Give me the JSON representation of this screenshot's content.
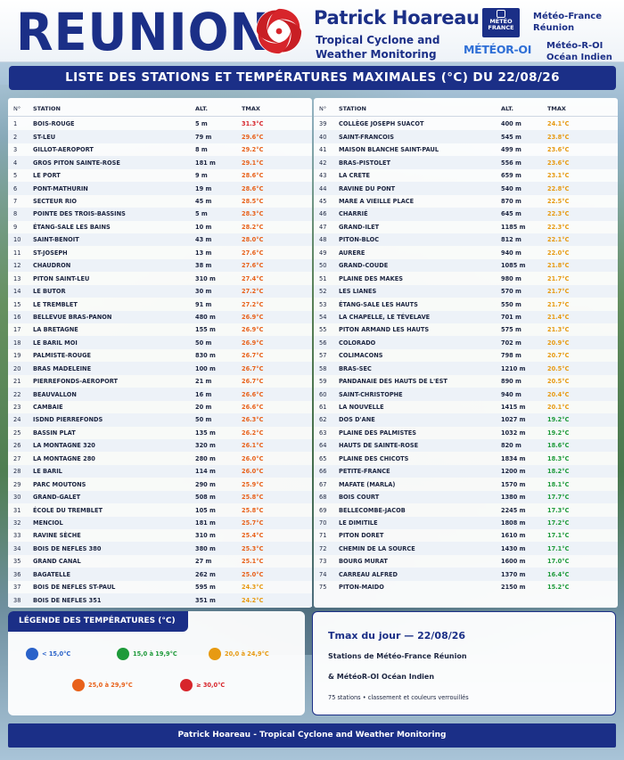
{
  "header": {
    "brand": "REUNION",
    "ph_title": "Patrick Hoareau",
    "ph_sub1": "Tropical Cyclone and",
    "ph_sub2": "Weather Monitoring",
    "mf_logo_line1": "MÉTÉO",
    "mf_logo_line2": "FRANCE",
    "mf_text1": "Météo-France",
    "mf_text2": "Réunion",
    "moi_logo": "MÉTÉOR-OI",
    "moi_text1": "Météo-R-OI",
    "moi_text2": "Océan Indien"
  },
  "title": "LISTE DES STATIONS ET TEMPÉRATURES MAXIMALES (°C) DU 22/08/26",
  "columns": {
    "n": "N°",
    "station": "STATION",
    "alt": "ALT.",
    "tmax": "TMAX"
  },
  "colors": {
    "lt15": "#2a62c9",
    "15to19": "#1e9a3a",
    "20to24": "#e79a12",
    "25to29": "#e8611a",
    "gte30": "#d7252b",
    "brand_blue": "#1b2f87"
  },
  "stations_left": [
    {
      "n": "1",
      "name": "BOIS-ROUGE",
      "alt": "5 m",
      "tmax": "31.3°C",
      "cls": "gte30"
    },
    {
      "n": "2",
      "name": "ST-LEU",
      "alt": "79 m",
      "tmax": "29.6°C",
      "cls": "25to29"
    },
    {
      "n": "3",
      "name": "GILLOT-AEROPORT",
      "alt": "8 m",
      "tmax": "29.2°C",
      "cls": "25to29"
    },
    {
      "n": "4",
      "name": "GROS PITON SAINTE-ROSE",
      "alt": "181 m",
      "tmax": "29.1°C",
      "cls": "25to29"
    },
    {
      "n": "5",
      "name": "LE PORT",
      "alt": "9 m",
      "tmax": "28.6°C",
      "cls": "25to29"
    },
    {
      "n": "6",
      "name": "PONT-MATHURIN",
      "alt": "19 m",
      "tmax": "28.6°C",
      "cls": "25to29"
    },
    {
      "n": "7",
      "name": "SECTEUR RIO",
      "alt": "45 m",
      "tmax": "28.5°C",
      "cls": "25to29"
    },
    {
      "n": "8",
      "name": "POINTE DES TROIS-BASSINS",
      "alt": "5 m",
      "tmax": "28.3°C",
      "cls": "25to29"
    },
    {
      "n": "9",
      "name": "ÉTANG-SALE LES BAINS",
      "alt": "10 m",
      "tmax": "28.2°C",
      "cls": "25to29"
    },
    {
      "n": "10",
      "name": "SAINT-BENOIT",
      "alt": "43 m",
      "tmax": "28.0°C",
      "cls": "25to29"
    },
    {
      "n": "11",
      "name": "ST-JOSEPH",
      "alt": "13 m",
      "tmax": "27.6°C",
      "cls": "25to29"
    },
    {
      "n": "12",
      "name": "CHAUDRON",
      "alt": "38 m",
      "tmax": "27.6°C",
      "cls": "25to29"
    },
    {
      "n": "13",
      "name": "PITON SAINT-LEU",
      "alt": "310 m",
      "tmax": "27.4°C",
      "cls": "25to29"
    },
    {
      "n": "14",
      "name": "LE BUTOR",
      "alt": "30 m",
      "tmax": "27.2°C",
      "cls": "25to29"
    },
    {
      "n": "15",
      "name": "LE TREMBLET",
      "alt": "91 m",
      "tmax": "27.2°C",
      "cls": "25to29"
    },
    {
      "n": "16",
      "name": "BELLEVUE BRAS-PANON",
      "alt": "480 m",
      "tmax": "26.9°C",
      "cls": "25to29"
    },
    {
      "n": "17",
      "name": "LA BRETAGNE",
      "alt": "155 m",
      "tmax": "26.9°C",
      "cls": "25to29"
    },
    {
      "n": "18",
      "name": "LE BARIL MOI",
      "alt": "50 m",
      "tmax": "26.9°C",
      "cls": "25to29"
    },
    {
      "n": "19",
      "name": "PALMISTE-ROUGE",
      "alt": "830 m",
      "tmax": "26.7°C",
      "cls": "25to29"
    },
    {
      "n": "20",
      "name": "BRAS MADELEINE",
      "alt": "100 m",
      "tmax": "26.7°C",
      "cls": "25to29"
    },
    {
      "n": "21",
      "name": "PIERREFONDS-AEROPORT",
      "alt": "21 m",
      "tmax": "26.7°C",
      "cls": "25to29"
    },
    {
      "n": "22",
      "name": "BEAUVALLON",
      "alt": "16 m",
      "tmax": "26.6°C",
      "cls": "25to29"
    },
    {
      "n": "23",
      "name": "CAMBAIE",
      "alt": "20 m",
      "tmax": "26.6°C",
      "cls": "25to29"
    },
    {
      "n": "24",
      "name": "ISDND PIERREFONDS",
      "alt": "50 m",
      "tmax": "26.3°C",
      "cls": "25to29"
    },
    {
      "n": "25",
      "name": "BASSIN PLAT",
      "alt": "135 m",
      "tmax": "26.2°C",
      "cls": "25to29"
    },
    {
      "n": "26",
      "name": "LA MONTAGNE 320",
      "alt": "320 m",
      "tmax": "26.1°C",
      "cls": "25to29"
    },
    {
      "n": "27",
      "name": "LA MONTAGNE 280",
      "alt": "280 m",
      "tmax": "26.0°C",
      "cls": "25to29"
    },
    {
      "n": "28",
      "name": "LE BARIL",
      "alt": "114 m",
      "tmax": "26.0°C",
      "cls": "25to29"
    },
    {
      "n": "29",
      "name": "PARC MOUTONS",
      "alt": "290 m",
      "tmax": "25.9°C",
      "cls": "25to29"
    },
    {
      "n": "30",
      "name": "GRAND-GALET",
      "alt": "508 m",
      "tmax": "25.8°C",
      "cls": "25to29"
    },
    {
      "n": "31",
      "name": "ÉCOLE DU TREMBLET",
      "alt": "105 m",
      "tmax": "25.8°C",
      "cls": "25to29"
    },
    {
      "n": "32",
      "name": "MENCIOL",
      "alt": "181 m",
      "tmax": "25.7°C",
      "cls": "25to29"
    },
    {
      "n": "33",
      "name": "RAVINE SÈCHE",
      "alt": "310 m",
      "tmax": "25.4°C",
      "cls": "25to29"
    },
    {
      "n": "34",
      "name": "BOIS DE NEFLES 380",
      "alt": "380 m",
      "tmax": "25.3°C",
      "cls": "25to29"
    },
    {
      "n": "35",
      "name": "GRAND CANAL",
      "alt": "27 m",
      "tmax": "25.1°C",
      "cls": "25to29"
    },
    {
      "n": "36",
      "name": "BAGATELLE",
      "alt": "262 m",
      "tmax": "25.0°C",
      "cls": "25to29"
    },
    {
      "n": "37",
      "name": "BOIS DE NEFLES ST-PAUL",
      "alt": "595 m",
      "tmax": "24.3°C",
      "cls": "20to24"
    },
    {
      "n": "38",
      "name": "BOIS DE NEFLES 351",
      "alt": "351 m",
      "tmax": "24.2°C",
      "cls": "20to24"
    }
  ],
  "stations_right": [
    {
      "n": "39",
      "name": "COLLÈGE JOSEPH SUACOT",
      "alt": "400 m",
      "tmax": "24.1°C",
      "cls": "20to24"
    },
    {
      "n": "40",
      "name": "SAINT-FRANCOIS",
      "alt": "545 m",
      "tmax": "23.8°C",
      "cls": "20to24"
    },
    {
      "n": "41",
      "name": "MAISON BLANCHE SAINT-PAUL",
      "alt": "499 m",
      "tmax": "23.6°C",
      "cls": "20to24"
    },
    {
      "n": "42",
      "name": "BRAS-PISTOLET",
      "alt": "556 m",
      "tmax": "23.6°C",
      "cls": "20to24"
    },
    {
      "n": "43",
      "name": "LA CRETE",
      "alt": "659 m",
      "tmax": "23.1°C",
      "cls": "20to24"
    },
    {
      "n": "44",
      "name": "RAVINE DU PONT",
      "alt": "540 m",
      "tmax": "22.8°C",
      "cls": "20to24"
    },
    {
      "n": "45",
      "name": "MARE A VIEILLE PLACE",
      "alt": "870 m",
      "tmax": "22.5°C",
      "cls": "20to24"
    },
    {
      "n": "46",
      "name": "CHARRIÉ",
      "alt": "645 m",
      "tmax": "22.3°C",
      "cls": "20to24"
    },
    {
      "n": "47",
      "name": "GRAND-ILET",
      "alt": "1185 m",
      "tmax": "22.3°C",
      "cls": "20to24"
    },
    {
      "n": "48",
      "name": "PITON-BLOC",
      "alt": "812 m",
      "tmax": "22.1°C",
      "cls": "20to24"
    },
    {
      "n": "49",
      "name": "AURERE",
      "alt": "940 m",
      "tmax": "22.0°C",
      "cls": "20to24"
    },
    {
      "n": "50",
      "name": "GRAND-COUDE",
      "alt": "1085 m",
      "tmax": "21.8°C",
      "cls": "20to24"
    },
    {
      "n": "51",
      "name": "PLAINE DES MAKES",
      "alt": "980 m",
      "tmax": "21.7°C",
      "cls": "20to24"
    },
    {
      "n": "52",
      "name": "LES LIANES",
      "alt": "570 m",
      "tmax": "21.7°C",
      "cls": "20to24"
    },
    {
      "n": "53",
      "name": "ÉTANG-SALE LES HAUTS",
      "alt": "550 m",
      "tmax": "21.7°C",
      "cls": "20to24"
    },
    {
      "n": "54",
      "name": "LA CHAPELLE, LE TÉVELAVE",
      "alt": "701 m",
      "tmax": "21.4°C",
      "cls": "20to24"
    },
    {
      "n": "55",
      "name": "PITON ARMAND LES HAUTS",
      "alt": "575 m",
      "tmax": "21.3°C",
      "cls": "20to24"
    },
    {
      "n": "56",
      "name": "COLORADO",
      "alt": "702 m",
      "tmax": "20.9°C",
      "cls": "20to24"
    },
    {
      "n": "57",
      "name": "COLIMACONS",
      "alt": "798 m",
      "tmax": "20.7°C",
      "cls": "20to24"
    },
    {
      "n": "58",
      "name": "BRAS-SEC",
      "alt": "1210 m",
      "tmax": "20.5°C",
      "cls": "20to24"
    },
    {
      "n": "59",
      "name": "PANDANAIE DES HAUTS DE L'EST",
      "alt": "890 m",
      "tmax": "20.5°C",
      "cls": "20to24"
    },
    {
      "n": "60",
      "name": "SAINT-CHRISTOPHE",
      "alt": "940 m",
      "tmax": "20.4°C",
      "cls": "20to24"
    },
    {
      "n": "61",
      "name": "LA NOUVELLE",
      "alt": "1415 m",
      "tmax": "20.1°C",
      "cls": "20to24"
    },
    {
      "n": "62",
      "name": "DOS D'ANE",
      "alt": "1027 m",
      "tmax": "19.2°C",
      "cls": "15to19"
    },
    {
      "n": "63",
      "name": "PLAINE DES PALMISTES",
      "alt": "1032 m",
      "tmax": "19.2°C",
      "cls": "15to19"
    },
    {
      "n": "64",
      "name": "HAUTS DE SAINTE-ROSE",
      "alt": "820 m",
      "tmax": "18.6°C",
      "cls": "15to19"
    },
    {
      "n": "65",
      "name": "PLAINE DES CHICOTS",
      "alt": "1834 m",
      "tmax": "18.3°C",
      "cls": "15to19"
    },
    {
      "n": "66",
      "name": "PETITE-FRANCE",
      "alt": "1200 m",
      "tmax": "18.2°C",
      "cls": "15to19"
    },
    {
      "n": "67",
      "name": "MAFATE (MARLA)",
      "alt": "1570 m",
      "tmax": "18.1°C",
      "cls": "15to19"
    },
    {
      "n": "68",
      "name": "BOIS COURT",
      "alt": "1380 m",
      "tmax": "17.7°C",
      "cls": "15to19"
    },
    {
      "n": "69",
      "name": "BELLECOMBE-JACOB",
      "alt": "2245 m",
      "tmax": "17.3°C",
      "cls": "15to19"
    },
    {
      "n": "70",
      "name": "LE DIMITILE",
      "alt": "1808 m",
      "tmax": "17.2°C",
      "cls": "15to19"
    },
    {
      "n": "71",
      "name": "PITON DORET",
      "alt": "1610 m",
      "tmax": "17.1°C",
      "cls": "15to19"
    },
    {
      "n": "72",
      "name": "CHEMIN DE LA SOURCE",
      "alt": "1430 m",
      "tmax": "17.1°C",
      "cls": "15to19"
    },
    {
      "n": "73",
      "name": "BOURG MURAT",
      "alt": "1600 m",
      "tmax": "17.0°C",
      "cls": "15to19"
    },
    {
      "n": "74",
      "name": "CARREAU ALFRED",
      "alt": "1370 m",
      "tmax": "16.4°C",
      "cls": "15to19"
    },
    {
      "n": "75",
      "name": "PITON-MAIDO",
      "alt": "2150 m",
      "tmax": "15.2°C",
      "cls": "15to19"
    }
  ],
  "legend": {
    "title": "LÉGENDE DES TEMPÉRATURES (°C)",
    "items": [
      {
        "label": "< 15,0°C",
        "cls": "lt15"
      },
      {
        "label": "15,0 à 19,9°C",
        "cls": "15to19"
      },
      {
        "label": "20,0 à 24,9°C",
        "cls": "20to24"
      },
      {
        "label": "25,0 à 29,9°C",
        "cls": "25to29"
      },
      {
        "label": "≥ 30,0°C",
        "cls": "gte30"
      }
    ]
  },
  "info": {
    "title": "Tmax du jour — 22/08/26",
    "line1": "Stations de Météo-France Réunion",
    "line2": "& MétéoR-OI Océan Indien",
    "line3": "75 stations • classement et couleurs verrouillés"
  },
  "footer": "Patrick Hoareau - Tropical Cyclone and Weather Monitoring"
}
